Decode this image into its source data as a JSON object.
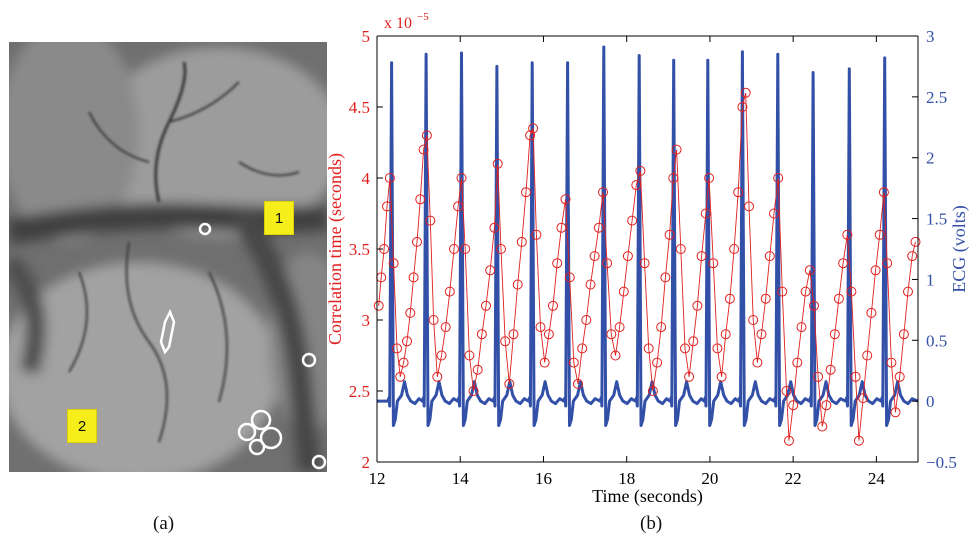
{
  "panel_a": {
    "markers": [
      "1",
      "2"
    ],
    "caption": "(a)"
  },
  "panel_b": {
    "caption": "(b)"
  },
  "chart_data": {
    "type": "line",
    "xlabel": "Time (seconds)",
    "ylabel_left": "Correlation time (seconds)",
    "ylabel_right": "ECG (volts)",
    "y_left_exponent_label": "x 10",
    "y_left_exponent": "−5",
    "xlim": [
      12,
      25
    ],
    "ylim_left": [
      2,
      5
    ],
    "ylim_right": [
      -0.5,
      3
    ],
    "x_ticks": [
      "12",
      "14",
      "16",
      "18",
      "20",
      "22",
      "24"
    ],
    "y_left_ticks": [
      "2",
      "2.5",
      "3",
      "3.5",
      "4",
      "4.5",
      "5"
    ],
    "y_right_ticks": [
      "−0.5",
      "0",
      "0.5",
      "1",
      "1.5",
      "2",
      "2.5",
      "3"
    ],
    "grid": false,
    "colors": {
      "correlation": "#e0201f",
      "ecg": "#3350a8"
    },
    "series": [
      {
        "axis": "right",
        "style": "line",
        "beat_times": [
          12.35,
          13.18,
          14.03,
          14.88,
          15.73,
          16.58,
          17.45,
          18.3,
          19.13,
          19.95,
          20.78,
          21.63,
          22.48,
          23.35,
          24.2
        ],
        "r_peak_volts": [
          2.78,
          2.85,
          2.86,
          2.75,
          2.78,
          2.78,
          2.91,
          2.84,
          2.8,
          2.8,
          2.87,
          2.85,
          2.7,
          2.73,
          2.82
        ],
        "baseline_volts": 0,
        "s_trough_volts": -0.2,
        "t_wave_volts": 0.16
      },
      {
        "axis": "left",
        "style": "circles",
        "points": [
          [
            12.04,
            3.1
          ],
          [
            12.1,
            3.3
          ],
          [
            12.17,
            3.5
          ],
          [
            12.24,
            3.8
          ],
          [
            12.31,
            4.0
          ],
          [
            12.4,
            3.4
          ],
          [
            12.48,
            2.8
          ],
          [
            12.56,
            2.6
          ],
          [
            12.64,
            2.7
          ],
          [
            12.72,
            2.85
          ],
          [
            12.8,
            3.05
          ],
          [
            12.88,
            3.3
          ],
          [
            12.96,
            3.55
          ],
          [
            13.04,
            3.85
          ],
          [
            13.12,
            4.2
          ],
          [
            13.2,
            4.3
          ],
          [
            13.28,
            3.7
          ],
          [
            13.36,
            3.0
          ],
          [
            13.45,
            2.6
          ],
          [
            13.55,
            2.75
          ],
          [
            13.65,
            2.95
          ],
          [
            13.75,
            3.2
          ],
          [
            13.85,
            3.5
          ],
          [
            13.95,
            3.8
          ],
          [
            14.03,
            4.0
          ],
          [
            14.12,
            3.5
          ],
          [
            14.22,
            2.75
          ],
          [
            14.32,
            2.5
          ],
          [
            14.42,
            2.65
          ],
          [
            14.52,
            2.9
          ],
          [
            14.62,
            3.1
          ],
          [
            14.72,
            3.35
          ],
          [
            14.82,
            3.65
          ],
          [
            14.9,
            4.1
          ],
          [
            14.98,
            3.5
          ],
          [
            15.08,
            2.85
          ],
          [
            15.18,
            2.55
          ],
          [
            15.28,
            2.9
          ],
          [
            15.38,
            3.25
          ],
          [
            15.48,
            3.55
          ],
          [
            15.58,
            3.9
          ],
          [
            15.68,
            4.3
          ],
          [
            15.75,
            4.35
          ],
          [
            15.83,
            3.6
          ],
          [
            15.93,
            2.95
          ],
          [
            16.03,
            2.7
          ],
          [
            16.13,
            2.9
          ],
          [
            16.23,
            3.1
          ],
          [
            16.33,
            3.4
          ],
          [
            16.43,
            3.65
          ],
          [
            16.53,
            3.85
          ],
          [
            16.63,
            3.3
          ],
          [
            16.73,
            2.7
          ],
          [
            16.83,
            2.55
          ],
          [
            16.93,
            2.8
          ],
          [
            17.03,
            3.0
          ],
          [
            17.13,
            3.25
          ],
          [
            17.23,
            3.45
          ],
          [
            17.33,
            3.65
          ],
          [
            17.43,
            3.9
          ],
          [
            17.53,
            3.4
          ],
          [
            17.63,
            2.9
          ],
          [
            17.73,
            2.75
          ],
          [
            17.83,
            2.95
          ],
          [
            17.93,
            3.2
          ],
          [
            18.03,
            3.45
          ],
          [
            18.13,
            3.7
          ],
          [
            18.23,
            3.95
          ],
          [
            18.33,
            4.05
          ],
          [
            18.43,
            3.4
          ],
          [
            18.53,
            2.8
          ],
          [
            18.63,
            2.5
          ],
          [
            18.73,
            2.7
          ],
          [
            18.83,
            2.95
          ],
          [
            18.93,
            3.3
          ],
          [
            19.03,
            3.6
          ],
          [
            19.12,
            4.0
          ],
          [
            19.2,
            4.2
          ],
          [
            19.3,
            3.5
          ],
          [
            19.4,
            2.8
          ],
          [
            19.5,
            2.6
          ],
          [
            19.6,
            2.85
          ],
          [
            19.7,
            3.1
          ],
          [
            19.8,
            3.45
          ],
          [
            19.9,
            3.75
          ],
          [
            19.98,
            4.0
          ],
          [
            20.08,
            3.4
          ],
          [
            20.18,
            2.8
          ],
          [
            20.28,
            2.6
          ],
          [
            20.38,
            2.9
          ],
          [
            20.48,
            3.15
          ],
          [
            20.58,
            3.5
          ],
          [
            20.68,
            3.9
          ],
          [
            20.78,
            4.5
          ],
          [
            20.86,
            4.6
          ],
          [
            20.94,
            3.8
          ],
          [
            21.04,
            3.0
          ],
          [
            21.14,
            2.7
          ],
          [
            21.24,
            2.9
          ],
          [
            21.34,
            3.15
          ],
          [
            21.44,
            3.45
          ],
          [
            21.54,
            3.75
          ],
          [
            21.64,
            4.0
          ],
          [
            21.74,
            3.2
          ],
          [
            21.84,
            2.5
          ],
          [
            21.9,
            2.15
          ],
          [
            22.0,
            2.4
          ],
          [
            22.1,
            2.7
          ],
          [
            22.2,
            2.95
          ],
          [
            22.3,
            3.2
          ],
          [
            22.4,
            3.35
          ],
          [
            22.5,
            3.1
          ],
          [
            22.6,
            2.6
          ],
          [
            22.7,
            2.25
          ],
          [
            22.8,
            2.4
          ],
          [
            22.9,
            2.65
          ],
          [
            23.0,
            2.9
          ],
          [
            23.1,
            3.15
          ],
          [
            23.2,
            3.4
          ],
          [
            23.3,
            3.6
          ],
          [
            23.4,
            3.2
          ],
          [
            23.5,
            2.6
          ],
          [
            23.58,
            2.15
          ],
          [
            23.68,
            2.45
          ],
          [
            23.78,
            2.75
          ],
          [
            23.88,
            3.05
          ],
          [
            23.98,
            3.35
          ],
          [
            24.08,
            3.6
          ],
          [
            24.18,
            3.9
          ],
          [
            24.26,
            3.4
          ],
          [
            24.36,
            2.7
          ],
          [
            24.46,
            2.35
          ],
          [
            24.56,
            2.6
          ],
          [
            24.66,
            2.9
          ],
          [
            24.76,
            3.2
          ],
          [
            24.86,
            3.45
          ],
          [
            24.94,
            3.55
          ]
        ]
      }
    ]
  }
}
